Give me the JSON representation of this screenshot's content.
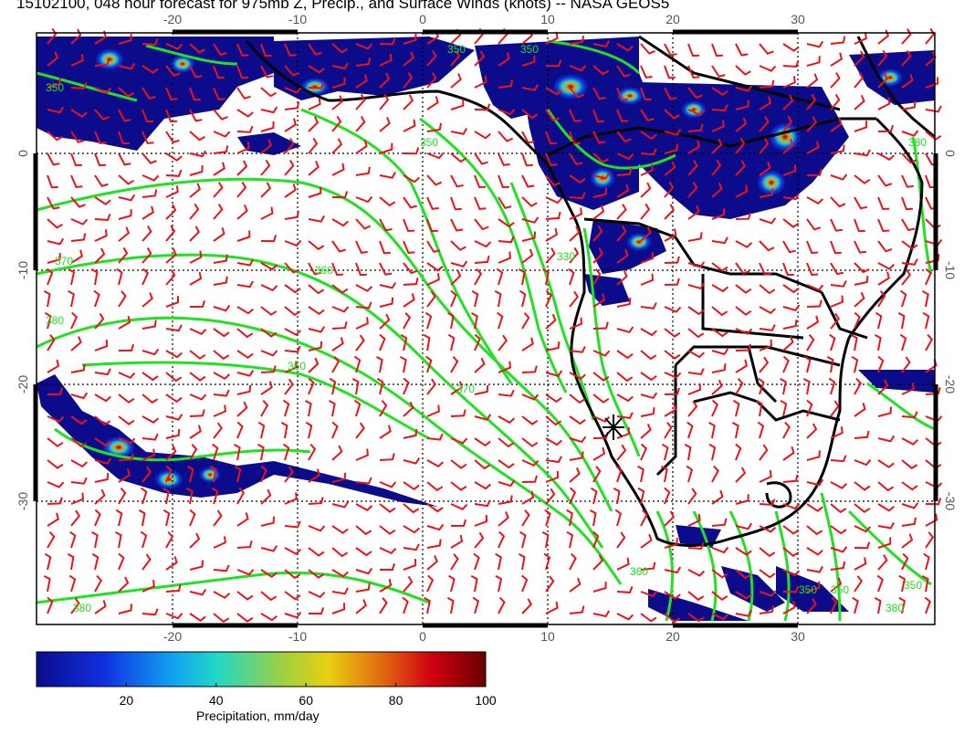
{
  "title": "15102100, 048 hour forecast for 975mb Z, Precip., and Surface Winds (knots) -- NASA GEOS5",
  "map": {
    "lon_ticks": [
      "-20",
      "-10",
      "0",
      "10",
      "20",
      "30"
    ],
    "lat_ticks": [
      "0",
      "-10",
      "-20",
      "-30"
    ],
    "contour_labels": [
      "350",
      "350",
      "350",
      "370",
      "380",
      "360",
      "380",
      "360",
      "370",
      "350",
      "380",
      "330",
      "360",
      "350",
      "380",
      "350",
      "350"
    ],
    "colors": {
      "wind_barbs": "#e8141a",
      "height_contours": "#22e022",
      "coastlines": "#000000",
      "gridlines": "#000000",
      "precip_low": "#0b0b8c",
      "precip_high": "#7a0000"
    },
    "marker": "asterisk-location-marker"
  },
  "colorbar": {
    "ticks": [
      "20",
      "40",
      "60",
      "80",
      "100"
    ],
    "label": "Precipitation, mm/day",
    "range": [
      0,
      100
    ]
  }
}
